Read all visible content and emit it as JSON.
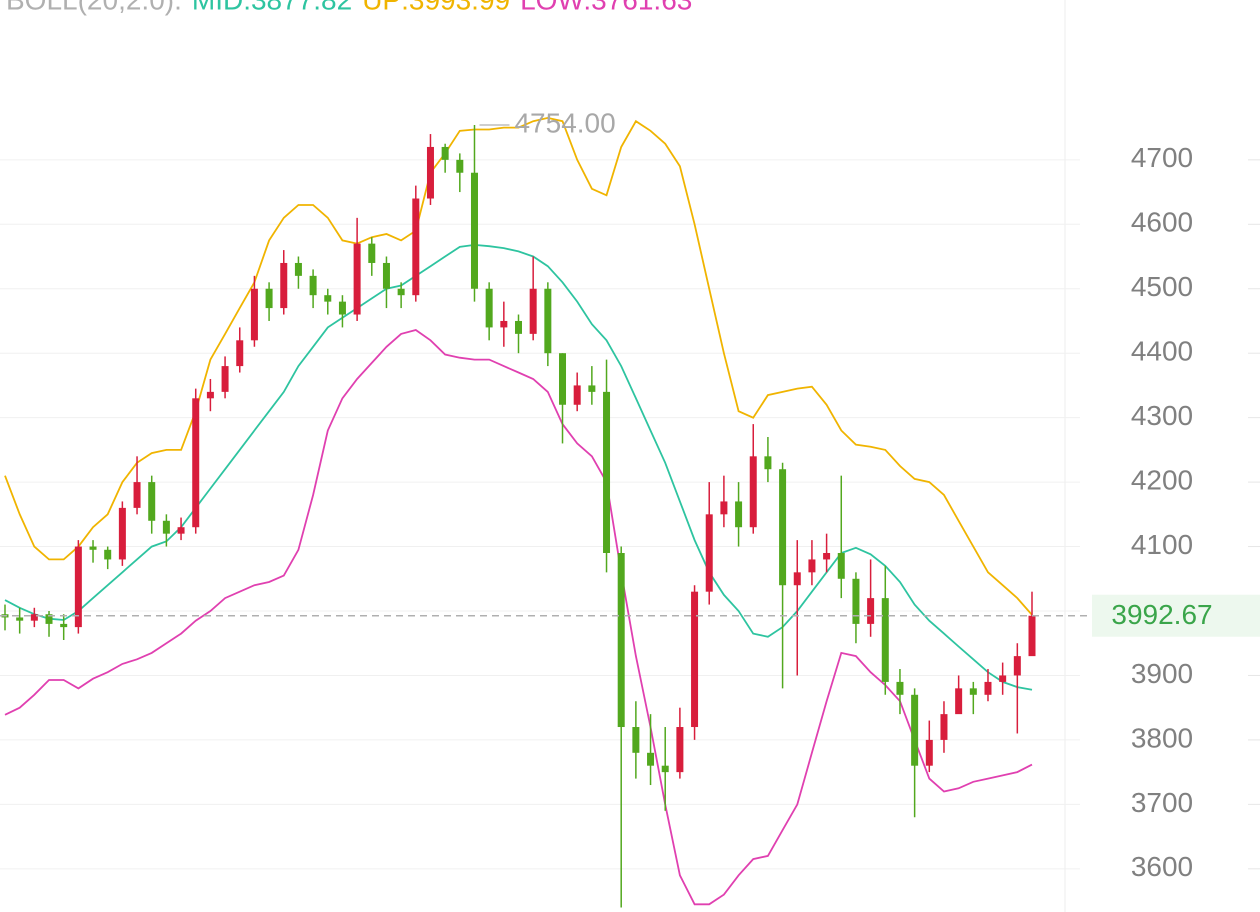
{
  "chart_data": {
    "type": "candlestick",
    "legend": [
      "BOLL(20,2.0):",
      "MID:3877.82",
      "UP:3993.99",
      "LOW:3761.63"
    ],
    "legend_colors": [
      "#b0b0b0",
      "#2ec4a0",
      "#f0b400",
      "#e040b0"
    ],
    "ylim": [
      3533,
      4948
    ],
    "yticks": [
      3600,
      3700,
      3800,
      3900,
      4000,
      4100,
      4200,
      4300,
      4400,
      4500,
      4600,
      4700
    ],
    "grid": true,
    "up_color": "#d81e3c",
    "down_color": "#52a81e",
    "current_price": 3992.67,
    "max_marker": {
      "value": 4754,
      "label": "4754.00"
    },
    "ohlc": {
      "open": [
        3995,
        3990,
        3985,
        3995,
        3980,
        3975,
        4100,
        4095,
        4080,
        4160,
        4200,
        4140,
        4120,
        4130,
        4330,
        4340,
        4380,
        4420,
        4500,
        4470,
        4540,
        4520,
        4490,
        4480,
        4460,
        4570,
        4540,
        4500,
        4490,
        4640,
        4720,
        4700,
        4680,
        4500,
        4440,
        4450,
        4430,
        4500,
        4400,
        4320,
        4350,
        4340,
        4090,
        3820,
        3780,
        3760,
        3750,
        3820,
        4030,
        4150,
        4170,
        4130,
        4240,
        4220,
        4040,
        4060,
        4080,
        4090,
        4050,
        3980,
        4020,
        3890,
        3870,
        3760,
        3800,
        3840,
        3880,
        3870,
        3890,
        3900,
        3930
      ],
      "high": [
        4010,
        4005,
        4005,
        4000,
        3995,
        4110,
        4110,
        4100,
        4170,
        4240,
        4210,
        4150,
        4145,
        4345,
        4360,
        4395,
        4440,
        4520,
        4510,
        4560,
        4550,
        4530,
        4500,
        4490,
        4610,
        4580,
        4550,
        4510,
        4660,
        4740,
        4725,
        4710,
        4754,
        4510,
        4480,
        4460,
        4550,
        4510,
        4400,
        4370,
        4380,
        4390,
        4100,
        3860,
        3840,
        3820,
        3850,
        4040,
        4200,
        4210,
        4200,
        4290,
        4270,
        4230,
        4110,
        4110,
        4120,
        4210,
        4060,
        4080,
        4070,
        3910,
        3880,
        3830,
        3860,
        3900,
        3890,
        3910,
        3920,
        3950,
        4030
      ],
      "low": [
        3970,
        3965,
        3975,
        3960,
        3955,
        3965,
        4075,
        4065,
        4070,
        4150,
        4120,
        4100,
        4110,
        4120,
        4310,
        4330,
        4370,
        4410,
        4450,
        4460,
        4500,
        4470,
        4460,
        4440,
        4450,
        4520,
        4470,
        4470,
        4480,
        4630,
        4680,
        4650,
        4480,
        4420,
        4410,
        4400,
        4420,
        4380,
        4260,
        4310,
        4320,
        4060,
        3540,
        3740,
        3730,
        3690,
        3740,
        3800,
        4010,
        4130,
        4100,
        4120,
        4200,
        3880,
        3900,
        4040,
        4060,
        4020,
        3950,
        3960,
        3870,
        3840,
        3680,
        3750,
        3780,
        3850,
        3840,
        3860,
        3870,
        3810,
        3960
      ],
      "close": [
        3990,
        3985,
        3995,
        3980,
        3975,
        4100,
        4095,
        4080,
        4160,
        4200,
        4140,
        4120,
        4130,
        4330,
        4340,
        4380,
        4420,
        4500,
        4470,
        4540,
        4520,
        4490,
        4480,
        4460,
        4570,
        4540,
        4500,
        4490,
        4640,
        4720,
        4700,
        4680,
        4500,
        4440,
        4450,
        4430,
        4500,
        4400,
        4320,
        4350,
        4340,
        4090,
        3820,
        3780,
        3760,
        3750,
        3820,
        4030,
        4150,
        4170,
        4130,
        4240,
        4220,
        4040,
        4060,
        4080,
        4090,
        4050,
        3980,
        4020,
        3890,
        3870,
        3760,
        3800,
        3840,
        3880,
        3870,
        3890,
        3900,
        3930,
        3992.67
      ]
    },
    "series": [
      {
        "color": "#2ec4a0",
        "values": [
          4017,
          4005,
          3995,
          3988,
          3986,
          4000,
          4020,
          4040,
          4060,
          4080,
          4100,
          4108,
          4130,
          4160,
          4190,
          4220,
          4250,
          4280,
          4310,
          4340,
          4380,
          4410,
          4440,
          4455,
          4470,
          4485,
          4500,
          4505,
          4520,
          4535,
          4550,
          4565,
          4568,
          4566,
          4563,
          4558,
          4550,
          4535,
          4510,
          4480,
          4445,
          4420,
          4380,
          4330,
          4280,
          4230,
          4170,
          4110,
          4060,
          4025,
          4000,
          3965,
          3960,
          3975,
          4000,
          4030,
          4060,
          4090,
          4098,
          4088,
          4070,
          4045,
          4010,
          3985,
          3965,
          3945,
          3925,
          3905,
          3890,
          3882,
          3877.82
        ]
      },
      {
        "color": "#f0b400",
        "values": [
          4210,
          4150,
          4100,
          4080,
          4080,
          4100,
          4130,
          4150,
          4200,
          4230,
          4245,
          4250,
          4250,
          4310,
          4390,
          4430,
          4470,
          4510,
          4575,
          4610,
          4630,
          4630,
          4610,
          4575,
          4570,
          4580,
          4585,
          4575,
          4590,
          4680,
          4710,
          4745,
          4747,
          4747,
          4750,
          4750,
          4760,
          4765,
          4760,
          4700,
          4655,
          4645,
          4720,
          4760,
          4745,
          4725,
          4690,
          4600,
          4500,
          4400,
          4310,
          4300,
          4335,
          4340,
          4345,
          4348,
          4320,
          4280,
          4258,
          4255,
          4250,
          4225,
          4205,
          4200,
          4180,
          4140,
          4100,
          4060,
          4040,
          4020,
          3993.99
        ]
      },
      {
        "color": "#e040b0",
        "values": [
          3839,
          3850,
          3870,
          3893,
          3893,
          3880,
          3895,
          3905,
          3918,
          3925,
          3935,
          3950,
          3965,
          3985,
          4000,
          4020,
          4030,
          4040,
          4045,
          4055,
          4095,
          4180,
          4280,
          4330,
          4360,
          4385,
          4410,
          4430,
          4436,
          4420,
          4398,
          4393,
          4390,
          4390,
          4380,
          4370,
          4360,
          4340,
          4290,
          4260,
          4240,
          4200,
          4060,
          3930,
          3820,
          3700,
          3590,
          3545,
          3545,
          3560,
          3590,
          3615,
          3620,
          3660,
          3700,
          3780,
          3860,
          3935,
          3930,
          3905,
          3885,
          3860,
          3800,
          3740,
          3720,
          3725,
          3735,
          3740,
          3745,
          3750,
          3761.63
        ]
      }
    ]
  }
}
